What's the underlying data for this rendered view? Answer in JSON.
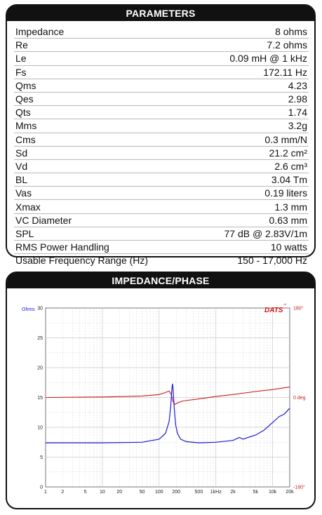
{
  "parameters": {
    "title": "PARAMETERS",
    "rows": [
      {
        "label": "Impedance",
        "value": "8 ohms"
      },
      {
        "label": "Re",
        "value": "7.2 ohms"
      },
      {
        "label": "Le",
        "value": "0.09 mH @ 1 kHz"
      },
      {
        "label": "Fs",
        "value": "172.11 Hz"
      },
      {
        "label": "Qms",
        "value": "4.23"
      },
      {
        "label": "Qes",
        "value": "2.98"
      },
      {
        "label": "Qts",
        "value": "1.74"
      },
      {
        "label": "Mms",
        "value": "3.2g"
      },
      {
        "label": "Cms",
        "value": "0.3 mm/N"
      },
      {
        "label": "Sd",
        "value": "21.2 cm²"
      },
      {
        "label": "Vd",
        "value": "2.6 cm³"
      },
      {
        "label": "BL",
        "value": "3.04 Tm"
      },
      {
        "label": "Vas",
        "value": "0.19 liters"
      },
      {
        "label": "Xmax",
        "value": "1.3 mm"
      },
      {
        "label": "VC Diameter",
        "value": "0.63 mm"
      },
      {
        "label": "SPL",
        "value": "77 dB @ 2.83V/1m"
      },
      {
        "label": "RMS Power Handling",
        "value": "10 watts"
      },
      {
        "label": "Usable Frequency Range (Hz)",
        "value": "150 - 17,000 Hz"
      }
    ]
  },
  "impedance_chart": {
    "title": "IMPEDANCE/PHASE",
    "logo": "DATS",
    "logo_sup": "v3",
    "left_unit": "Ohms",
    "left_ticks": [
      "0",
      "5",
      "10",
      "15",
      "20",
      "25",
      "30"
    ],
    "right_ticks": [
      "180°",
      "0 deg",
      "-180°"
    ],
    "x_ticks": [
      "1",
      "2",
      "5",
      "10",
      "20",
      "50",
      "100",
      "200",
      "500",
      "1kHz",
      "2k",
      "5k",
      "10k",
      "20k"
    ],
    "colors": {
      "impedance": "#1a1adb",
      "phase": "#d11a1a",
      "grid": "#c8c8c8"
    }
  },
  "chart_data": {
    "type": "line",
    "title": "IMPEDANCE/PHASE",
    "xlabel": "",
    "ylabel": "Ohms",
    "xscale": "log",
    "xlim": [
      1,
      20000
    ],
    "ylim": [
      0,
      30
    ],
    "y2lim": [
      -180,
      180
    ],
    "grid": true,
    "series": [
      {
        "axis": "left",
        "x": [
          1,
          10,
          50,
          100,
          130,
          150,
          160,
          168,
          172,
          176,
          184,
          195,
          210,
          240,
          300,
          500,
          1000,
          2000,
          2600,
          3000,
          4000,
          5000,
          7000,
          10000,
          13000,
          16000,
          20000
        ],
        "values": [
          7.4,
          7.4,
          7.5,
          8.0,
          9.0,
          11.0,
          13.5,
          16.5,
          17.3,
          16.5,
          13.5,
          10.5,
          9.0,
          8.0,
          7.6,
          7.4,
          7.5,
          7.8,
          8.3,
          8.0,
          8.4,
          8.7,
          9.5,
          10.8,
          11.8,
          12.2,
          13.2
        ]
      },
      {
        "axis": "right",
        "x": [
          1,
          10,
          50,
          100,
          130,
          150,
          165,
          175,
          190,
          210,
          260,
          500,
          1000,
          2000,
          5000,
          10000,
          20000
        ],
        "values": [
          0,
          1,
          3,
          6,
          10,
          13,
          5,
          -8,
          -14,
          -11,
          -7,
          -3,
          2,
          6,
          12,
          16,
          21
        ]
      }
    ]
  }
}
